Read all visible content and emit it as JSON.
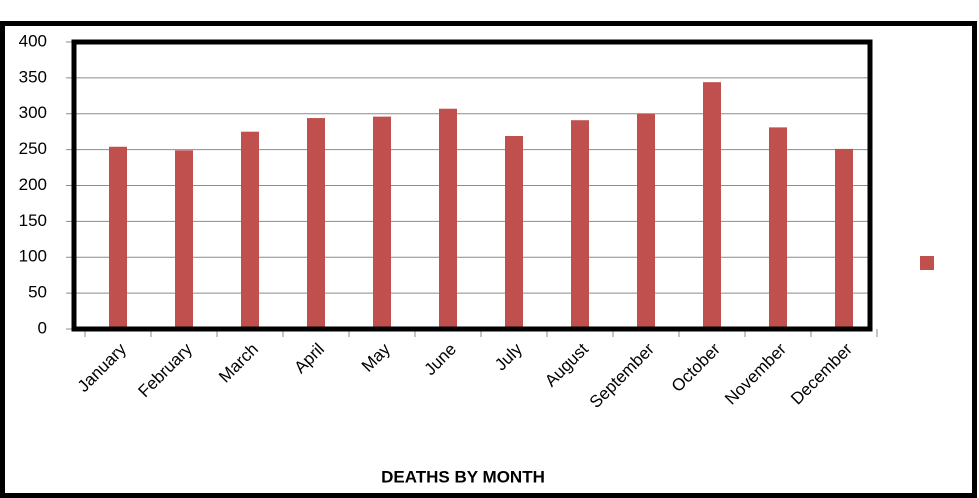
{
  "chart_data": {
    "type": "bar",
    "title": "DEATHS BY MONTH",
    "categories": [
      "January",
      "February",
      "March",
      "April",
      "May",
      "June",
      "July",
      "August",
      "September",
      "October",
      "November",
      "December"
    ],
    "values": [
      254,
      249,
      275,
      294,
      296,
      307,
      269,
      291,
      300,
      344,
      281,
      251
    ],
    "color": "#c0504d",
    "ylim": [
      0,
      400
    ],
    "yticks": [
      0,
      50,
      100,
      150,
      200,
      250,
      300,
      350,
      400
    ],
    "grid": true,
    "legend": "right"
  }
}
